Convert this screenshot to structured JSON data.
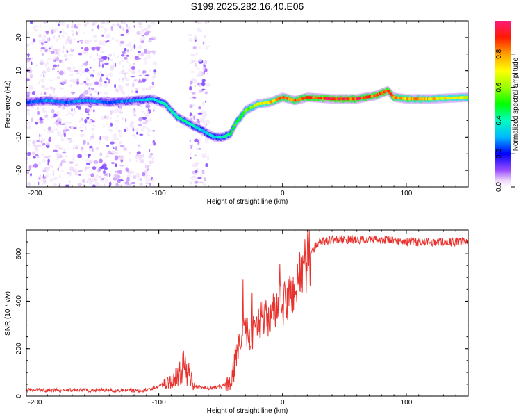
{
  "title": "S199.2025.282.16.40.E06",
  "colors": {
    "trace": "#e8322e",
    "axis": "#000000"
  },
  "chart_data": [
    {
      "type": "heatmap",
      "xlabel": "Height of straight line (km)",
      "ylabel": "Frequency (Hz)",
      "xlim": [
        -207,
        150
      ],
      "ylim": [
        -25,
        25
      ],
      "xticks": [
        -200,
        -100,
        0,
        100
      ],
      "yticks": [
        -20,
        -10,
        0,
        10,
        20
      ],
      "colorbar": {
        "label": "Normalized spectral amplitude",
        "range": [
          0,
          1
        ],
        "ticks": [
          "0.0",
          "0.2",
          "0.4",
          "0.6",
          "0.8"
        ],
        "tick_values": [
          0,
          0.2,
          0.4,
          0.6,
          0.8
        ]
      },
      "ridge": {
        "x": [
          -207,
          -190,
          -175,
          -160,
          -140,
          -120,
          -105,
          -95,
          -85,
          -75,
          -65,
          -55,
          -48,
          -42,
          -38,
          -30,
          -20,
          -10,
          0,
          10,
          20,
          40,
          60,
          75,
          85,
          90,
          100,
          120,
          150
        ],
        "y": [
          0.5,
          1,
          0.5,
          1,
          0.5,
          1,
          1.5,
          0,
          -4,
          -6,
          -8,
          -10,
          -10,
          -9,
          -6,
          -2,
          0,
          0.5,
          2,
          1,
          2,
          1.5,
          1.5,
          2.5,
          4,
          2,
          1.5,
          1.5,
          2
        ],
        "amplitude": [
          0.25,
          0.3,
          0.25,
          0.3,
          0.25,
          0.3,
          0.35,
          0.4,
          0.45,
          0.4,
          0.35,
          0.35,
          0.4,
          0.45,
          0.5,
          0.55,
          0.65,
          0.8,
          0.85,
          0.85,
          0.9,
          0.95,
          0.9,
          0.9,
          0.95,
          0.85,
          0.8,
          0.75,
          0.7
        ]
      },
      "noise_x_ranges": [
        [
          -207,
          -103
        ],
        [
          -75,
          -60
        ]
      ]
    },
    {
      "type": "line",
      "xlabel": "Height of straight line (km)",
      "ylabel": "SNR (10 * v/v)",
      "xlim": [
        -207,
        150
      ],
      "ylim": [
        0,
        700
      ],
      "xticks": [
        -200,
        -100,
        0,
        100
      ],
      "yticks": [
        0,
        200,
        400,
        600
      ],
      "series": [
        {
          "name": "SNR",
          "x": [
            -207,
            -150,
            -110,
            -90,
            -80,
            -75,
            -70,
            -60,
            -50,
            -42,
            -36,
            -30,
            -25,
            -20,
            -15,
            -10,
            -5,
            0,
            5,
            10,
            15,
            20,
            25,
            30,
            40,
            60,
            80,
            100,
            120,
            150
          ],
          "y": [
            25,
            25,
            25,
            60,
            120,
            90,
            40,
            35,
            40,
            60,
            200,
            280,
            250,
            330,
            320,
            340,
            360,
            380,
            420,
            450,
            520,
            580,
            620,
            650,
            660,
            660,
            660,
            650,
            650,
            650
          ]
        }
      ]
    }
  ]
}
